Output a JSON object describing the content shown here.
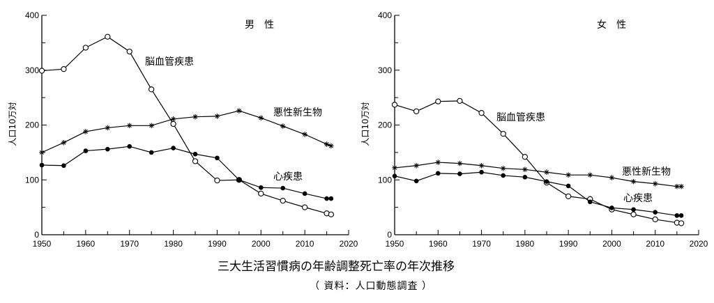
{
  "chart_data": [
    {
      "type": "line",
      "title": "男　性",
      "ylabel": "人口10万対",
      "xlim": [
        1950,
        2020
      ],
      "ylim": [
        0,
        400
      ],
      "xticks": [
        1950,
        1960,
        1970,
        1980,
        1990,
        2000,
        2010,
        2020
      ],
      "yticks": [
        0,
        100,
        200,
        300,
        400
      ],
      "grid": false,
      "series": [
        {
          "name": "脳血管疾患",
          "marker": "open-circle",
          "x": [
            1950,
            1955,
            1960,
            1965,
            1970,
            1975,
            1980,
            1985,
            1990,
            1995,
            2000,
            2005,
            2010,
            2015,
            2016
          ],
          "y": [
            299,
            302,
            341,
            361,
            334,
            265,
            202,
            134,
            99,
            100,
            75,
            62,
            50,
            39,
            37
          ]
        },
        {
          "name": "悪性新生物",
          "marker": "star",
          "x": [
            1950,
            1955,
            1960,
            1965,
            1970,
            1975,
            1980,
            1985,
            1990,
            1995,
            2000,
            2005,
            2010,
            2015,
            2016
          ],
          "y": [
            150,
            168,
            188,
            195,
            199,
            199,
            211,
            215,
            216,
            226,
            213,
            198,
            183,
            165,
            162
          ]
        },
        {
          "name": "心疾患",
          "marker": "filled-circle",
          "x": [
            1950,
            1955,
            1960,
            1965,
            1970,
            1975,
            1980,
            1985,
            1990,
            1995,
            2000,
            2005,
            2010,
            2015,
            2016
          ],
          "y": [
            127,
            126,
            153,
            156,
            161,
            150,
            158,
            147,
            140,
            100,
            86,
            85,
            75,
            66,
            66
          ]
        }
      ]
    },
    {
      "type": "line",
      "title": "女　性",
      "ylabel": "人口10万対",
      "xlim": [
        1950,
        2020
      ],
      "ylim": [
        0,
        400
      ],
      "xticks": [
        1950,
        1960,
        1970,
        1980,
        1990,
        2000,
        2010,
        2020
      ],
      "yticks": [
        0,
        100,
        200,
        300,
        400
      ],
      "grid": false,
      "series": [
        {
          "name": "脳血管疾患",
          "marker": "open-circle",
          "x": [
            1950,
            1955,
            1960,
            1965,
            1970,
            1975,
            1980,
            1985,
            1990,
            1995,
            2000,
            2005,
            2010,
            2015,
            2016
          ],
          "y": [
            237,
            225,
            243,
            244,
            222,
            184,
            142,
            95,
            70,
            65,
            46,
            37,
            28,
            22,
            21
          ]
        },
        {
          "name": "悪性新生物",
          "marker": "star",
          "x": [
            1950,
            1955,
            1960,
            1965,
            1970,
            1975,
            1980,
            1985,
            1990,
            1995,
            2000,
            2005,
            2010,
            2015,
            2016
          ],
          "y": [
            122,
            126,
            132,
            130,
            126,
            121,
            119,
            114,
            109,
            109,
            104,
            97,
            93,
            88,
            88
          ]
        },
        {
          "name": "心疾患",
          "marker": "filled-circle",
          "x": [
            1950,
            1955,
            1960,
            1965,
            1970,
            1975,
            1980,
            1985,
            1990,
            1995,
            2000,
            2005,
            2010,
            2015,
            2016
          ],
          "y": [
            107,
            98,
            112,
            111,
            114,
            108,
            105,
            97,
            89,
            60,
            49,
            46,
            41,
            35,
            35
          ]
        }
      ]
    }
  ],
  "caption": {
    "title": "三大生活習慣病の年齢調整死亡率の年次推移",
    "source": "（ 資料：人口動態調査 ）"
  }
}
